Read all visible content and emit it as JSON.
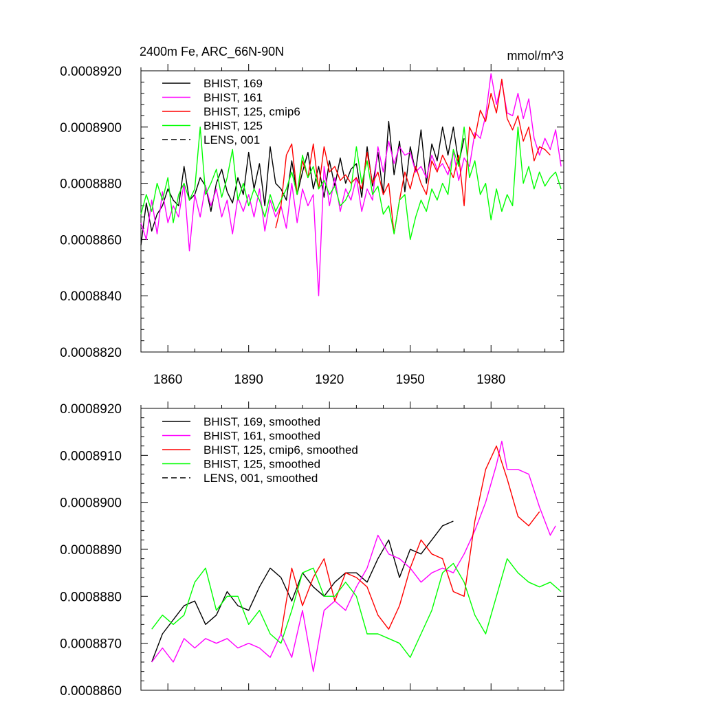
{
  "title_left": "2400m Fe, ARC_66N-90N",
  "title_right": "mmol/m^3",
  "colors": {
    "BHIST, 169": "#000000",
    "BHIST, 161": "#ff00ff",
    "BHIST, 125, cmip6": "#ff0000",
    "BHIST, 125": "#00ff00",
    "LENS, 001": "#000000"
  },
  "chart_data": [
    {
      "type": "line",
      "title": "2400m Fe, ARC_66N-90N",
      "units": "mmol/m^3",
      "xlim": [
        1850,
        2007
      ],
      "ylim": [
        0.000882,
        0.000892
      ],
      "xticks": [
        1860,
        1890,
        1920,
        1950,
        1980
      ],
      "yticks": [
        "0.0008820",
        "0.0008840",
        "0.0008860",
        "0.0008880",
        "0.0008900",
        "0.0008920"
      ],
      "legend": [
        "BHIST, 169",
        "BHIST, 161",
        "BHIST, 125, cmip6",
        "BHIST, 125",
        "LENS, 001"
      ],
      "series": [
        {
          "name": "BHIST, 169",
          "color": "#000000",
          "dash": false,
          "x": [
            1850,
            1852,
            1854,
            1856,
            1858,
            1860,
            1862,
            1864,
            1866,
            1868,
            1870,
            1872,
            1874,
            1876,
            1878,
            1880,
            1882,
            1884,
            1886,
            1888,
            1890,
            1892,
            1894,
            1896,
            1898,
            1900,
            1902,
            1904,
            1906,
            1908,
            1910,
            1912,
            1914,
            1916,
            1918,
            1920,
            1922,
            1924,
            1926,
            1928,
            1930,
            1932,
            1934,
            1936,
            1938,
            1940,
            1942,
            1944,
            1946,
            1948,
            1950,
            1952,
            1954,
            1956,
            1958,
            1960,
            1962,
            1964,
            1966,
            1968,
            1970
          ],
          "y": [
            0.0008858,
            0.0008873,
            0.0008863,
            0.0008869,
            0.0008872,
            0.0008878,
            0.0008874,
            0.0008872,
            0.0008886,
            0.0008874,
            0.0008876,
            0.0008882,
            0.0008879,
            0.000887,
            0.000888,
            0.0008885,
            0.0008877,
            0.0008873,
            0.0008882,
            0.0008876,
            0.0008891,
            0.0008878,
            0.0008887,
            0.0008872,
            0.0008893,
            0.000888,
            0.0008878,
            0.0008874,
            0.0008888,
            0.0008876,
            0.0008884,
            0.0008891,
            0.0008878,
            0.0008886,
            0.0008875,
            0.0008888,
            0.0008879,
            0.0008889,
            0.000888,
            0.0008885,
            0.0008887,
            0.0008875,
            0.0008893,
            0.0008879,
            0.0008891,
            0.0008876,
            0.0008902,
            0.0008883,
            0.0008895,
            0.0008877,
            0.0008893,
            0.0008884,
            0.0008899,
            0.000888,
            0.0008894,
            0.0008888,
            0.00089,
            0.000889,
            0.00089,
            0.0008887,
            0.0008896
          ]
        },
        {
          "name": "BHIST, 161",
          "color": "#ff00ff",
          "dash": false,
          "x": [
            1850,
            1852,
            1854,
            1856,
            1858,
            1860,
            1862,
            1864,
            1866,
            1868,
            1870,
            1872,
            1874,
            1876,
            1878,
            1880,
            1882,
            1884,
            1886,
            1888,
            1890,
            1892,
            1894,
            1896,
            1898,
            1900,
            1902,
            1904,
            1906,
            1908,
            1910,
            1912,
            1914,
            1916,
            1918,
            1920,
            1922,
            1924,
            1926,
            1928,
            1930,
            1932,
            1934,
            1936,
            1938,
            1940,
            1942,
            1944,
            1946,
            1948,
            1950,
            1952,
            1954,
            1956,
            1958,
            1960,
            1962,
            1964,
            1966,
            1968,
            1970,
            1972,
            1974,
            1976,
            1978,
            1980,
            1982,
            1984,
            1986,
            1988,
            1990,
            1992,
            1994,
            1996,
            1998,
            2000,
            2002,
            2004,
            2006
          ],
          "y": [
            0.0008866,
            0.000886,
            0.0008874,
            0.0008862,
            0.0008877,
            0.0008866,
            0.0008872,
            0.0008868,
            0.000888,
            0.0008856,
            0.0008876,
            0.0008868,
            0.0008879,
            0.0008872,
            0.0008878,
            0.0008868,
            0.0008874,
            0.0008862,
            0.0008875,
            0.000887,
            0.0008876,
            0.0008868,
            0.0008878,
            0.0008863,
            0.0008874,
            0.0008868,
            0.0008872,
            0.0008864,
            0.000888,
            0.0008866,
            0.0008878,
            0.0008872,
            0.0008876,
            0.000884,
            0.0008886,
            0.0008872,
            0.0008882,
            0.000887,
            0.0008878,
            0.0008874,
            0.0008882,
            0.000887,
            0.0008878,
            0.0008874,
            0.0008893,
            0.0008884,
            0.0008895,
            0.0008887,
            0.0008893,
            0.000889,
            0.0008891,
            0.0008884,
            0.0008886,
            0.0008882,
            0.000889,
            0.0008885,
            0.0008887,
            0.0008883,
            0.0008891,
            0.0008881,
            0.0008889,
            0.0008886,
            0.0008898,
            0.0008896,
            0.0008904,
            0.0008919,
            0.0008908,
            0.0008916,
            0.0008905,
            0.0008904,
            0.0008912,
            0.0008903,
            0.000891,
            0.0008896,
            0.000889,
            0.0008896,
            0.0008892,
            0.0008899,
            0.0008886
          ]
        },
        {
          "name": "BHIST, 125, cmip6",
          "color": "#ff0000",
          "dash": false,
          "x": [
            1900,
            1902,
            1904,
            1906,
            1908,
            1910,
            1912,
            1914,
            1916,
            1918,
            1920,
            1922,
            1924,
            1926,
            1928,
            1930,
            1932,
            1934,
            1936,
            1938,
            1940,
            1942,
            1944,
            1946,
            1948,
            1950,
            1952,
            1954,
            1956,
            1958,
            1960,
            1962,
            1964,
            1966,
            1968,
            1970,
            1972,
            1974,
            1976,
            1978,
            1980,
            1982,
            1984,
            1986,
            1988,
            1990,
            1992,
            1994,
            1996,
            1998,
            2000,
            2002
          ],
          "y": [
            0.0008864,
            0.0008872,
            0.000889,
            0.0008894,
            0.0008876,
            0.0008888,
            0.0008882,
            0.0008894,
            0.0008878,
            0.0008893,
            0.0008884,
            0.0008886,
            0.0008881,
            0.0008883,
            0.000888,
            0.0008882,
            0.0008878,
            0.0008891,
            0.000888,
            0.0008884,
            0.0008876,
            0.000888,
            0.0008862,
            0.0008874,
            0.0008884,
            0.0008878,
            0.0008886,
            0.000888,
            0.0008876,
            0.0008888,
            0.0008884,
            0.000889,
            0.0008886,
            0.0008882,
            0.000889,
            0.0008872,
            0.00089,
            0.0008896,
            0.0008906,
            0.0008902,
            0.0008912,
            0.0008905,
            0.0008917,
            0.0008903,
            0.0008899,
            0.0008904,
            0.0008895,
            0.00089,
            0.0008888,
            0.0008893,
            0.0008892,
            0.000889
          ]
        },
        {
          "name": "BHIST, 125",
          "color": "#00ff00",
          "dash": false,
          "x": [
            1850,
            1852,
            1854,
            1856,
            1858,
            1860,
            1862,
            1864,
            1866,
            1868,
            1870,
            1872,
            1874,
            1876,
            1878,
            1880,
            1882,
            1884,
            1886,
            1888,
            1890,
            1892,
            1894,
            1896,
            1898,
            1900,
            1902,
            1904,
            1906,
            1908,
            1910,
            1912,
            1914,
            1916,
            1918,
            1920,
            1922,
            1924,
            1926,
            1928,
            1930,
            1932,
            1934,
            1936,
            1938,
            1940,
            1942,
            1944,
            1946,
            1948,
            1950,
            1952,
            1954,
            1956,
            1958,
            1960,
            1962,
            1964,
            1966,
            1968,
            1970,
            1972,
            1974,
            1976,
            1978,
            1980,
            1982,
            1984,
            1986,
            1988,
            1990,
            1992,
            1994,
            1996,
            1998,
            2000,
            2002,
            2004,
            2006
          ],
          "y": [
            0.0008869,
            0.0008876,
            0.000887,
            0.000888,
            0.0008874,
            0.0008882,
            0.0008866,
            0.0008876,
            0.000888,
            0.0008874,
            0.0008878,
            0.00089,
            0.0008876,
            0.000888,
            0.0008885,
            0.0008875,
            0.0008882,
            0.0008892,
            0.0008874,
            0.000888,
            0.0008872,
            0.0008878,
            0.0008874,
            0.0008868,
            0.0008876,
            0.000887,
            0.0008874,
            0.0008878,
            0.0008884,
            0.0008876,
            0.000889,
            0.0008882,
            0.0008886,
            0.0008878,
            0.0008881,
            0.0008876,
            0.0008879,
            0.0008872,
            0.0008874,
            0.0008878,
            0.0008893,
            0.000888,
            0.0008888,
            0.0008876,
            0.0008879,
            0.0008869,
            0.0008872,
            0.0008862,
            0.0008874,
            0.0008876,
            0.000886,
            0.0008868,
            0.0008874,
            0.000887,
            0.0008878,
            0.0008874,
            0.000888,
            0.0008876,
            0.0008892,
            0.0008886,
            0.00089,
            0.0008882,
            0.0008888,
            0.0008876,
            0.000888,
            0.0008867,
            0.0008878,
            0.000887,
            0.0008876,
            0.0008872,
            0.00089,
            0.000888,
            0.0008886,
            0.0008878,
            0.0008884,
            0.0008879,
            0.0008882,
            0.0008884,
            0.0008878
          ]
        },
        {
          "name": "LENS, 001",
          "color": "#000000",
          "dash": true,
          "x": [],
          "y": []
        }
      ]
    },
    {
      "type": "line",
      "title": "",
      "xlim": [
        1850,
        2007
      ],
      "ylim": [
        0.000886,
        0.000892
      ],
      "xticks": [
        1860,
        1890,
        1920,
        1950,
        1980
      ],
      "yticks": [
        "0.0008860",
        "0.0008870",
        "0.0008880",
        "0.0008890",
        "0.0008900",
        "0.0008910",
        "0.0008920"
      ],
      "legend": [
        "BHIST, 169, smoothed",
        "BHIST, 161, smoothed",
        "BHIST, 125, cmip6, smoothed",
        "BHIST, 125, smoothed",
        "LENS, 001, smoothed"
      ],
      "series": [
        {
          "name": "BHIST, 169, smoothed",
          "color": "#000000",
          "dash": false,
          "x": [
            1854,
            1858,
            1862,
            1866,
            1870,
            1874,
            1878,
            1882,
            1886,
            1890,
            1894,
            1898,
            1902,
            1906,
            1910,
            1914,
            1918,
            1922,
            1926,
            1930,
            1934,
            1938,
            1942,
            1946,
            1950,
            1954,
            1958,
            1962,
            1966
          ],
          "y": [
            0.0008866,
            0.0008872,
            0.0008875,
            0.0008878,
            0.0008879,
            0.0008874,
            0.0008876,
            0.0008881,
            0.0008878,
            0.0008877,
            0.0008882,
            0.0008886,
            0.0008884,
            0.0008879,
            0.0008885,
            0.0008882,
            0.000888,
            0.0008883,
            0.0008885,
            0.0008885,
            0.0008883,
            0.0008888,
            0.0008892,
            0.0008884,
            0.000889,
            0.0008889,
            0.0008892,
            0.0008895,
            0.0008896
          ]
        },
        {
          "name": "BHIST, 161, smoothed",
          "color": "#ff00ff",
          "dash": false,
          "x": [
            1854,
            1858,
            1862,
            1866,
            1870,
            1874,
            1878,
            1882,
            1886,
            1890,
            1894,
            1898,
            1902,
            1906,
            1910,
            1914,
            1918,
            1922,
            1926,
            1930,
            1934,
            1938,
            1942,
            1946,
            1950,
            1954,
            1958,
            1962,
            1966,
            1970,
            1974,
            1978,
            1982,
            1984,
            1986,
            1990,
            1994,
            1998,
            2002,
            2004
          ],
          "y": [
            0.0008866,
            0.0008869,
            0.0008866,
            0.0008871,
            0.0008869,
            0.0008871,
            0.000887,
            0.0008871,
            0.0008869,
            0.000887,
            0.0008869,
            0.0008867,
            0.0008872,
            0.0008867,
            0.0008877,
            0.0008864,
            0.0008877,
            0.0008879,
            0.0008877,
            0.0008882,
            0.0008886,
            0.0008893,
            0.0008889,
            0.0008888,
            0.0008886,
            0.0008883,
            0.0008885,
            0.0008886,
            0.0008885,
            0.0008889,
            0.0008894,
            0.00089,
            0.0008908,
            0.0008913,
            0.0008907,
            0.0008907,
            0.0008906,
            0.0008899,
            0.0008893,
            0.0008895
          ]
        },
        {
          "name": "BHIST, 125, cmip6, smoothed",
          "color": "#ff0000",
          "dash": false,
          "x": [
            1902,
            1906,
            1910,
            1914,
            1918,
            1922,
            1926,
            1930,
            1934,
            1938,
            1942,
            1946,
            1950,
            1954,
            1958,
            1962,
            1966,
            1970,
            1974,
            1978,
            1982,
            1986,
            1990,
            1994,
            1998
          ],
          "y": [
            0.0008872,
            0.0008886,
            0.0008878,
            0.0008884,
            0.0008888,
            0.0008879,
            0.0008885,
            0.0008884,
            0.0008882,
            0.0008876,
            0.0008873,
            0.0008878,
            0.0008886,
            0.0008892,
            0.0008889,
            0.0008888,
            0.0008881,
            0.000888,
            0.0008896,
            0.0008907,
            0.0008912,
            0.0008905,
            0.0008897,
            0.0008895,
            0.0008898
          ]
        },
        {
          "name": "BHIST, 125, smoothed",
          "color": "#00ff00",
          "dash": false,
          "x": [
            1854,
            1858,
            1862,
            1866,
            1870,
            1874,
            1878,
            1882,
            1886,
            1890,
            1894,
            1898,
            1902,
            1906,
            1910,
            1914,
            1918,
            1922,
            1926,
            1930,
            1934,
            1938,
            1942,
            1946,
            1950,
            1954,
            1958,
            1962,
            1966,
            1970,
            1974,
            1978,
            1982,
            1986,
            1990,
            1994,
            1998,
            2002,
            2006
          ],
          "y": [
            0.0008873,
            0.0008876,
            0.0008874,
            0.0008876,
            0.0008883,
            0.0008886,
            0.0008877,
            0.000888,
            0.000888,
            0.0008874,
            0.0008877,
            0.0008872,
            0.000887,
            0.0008877,
            0.0008885,
            0.0008886,
            0.000888,
            0.000888,
            0.0008883,
            0.000888,
            0.0008872,
            0.0008872,
            0.0008871,
            0.000887,
            0.0008867,
            0.0008872,
            0.0008877,
            0.0008885,
            0.0008887,
            0.0008883,
            0.0008876,
            0.0008872,
            0.000888,
            0.0008888,
            0.0008885,
            0.0008883,
            0.0008882,
            0.0008883,
            0.0008881
          ]
        },
        {
          "name": "LENS, 001, smoothed",
          "color": "#000000",
          "dash": true,
          "x": [],
          "y": []
        }
      ]
    }
  ]
}
